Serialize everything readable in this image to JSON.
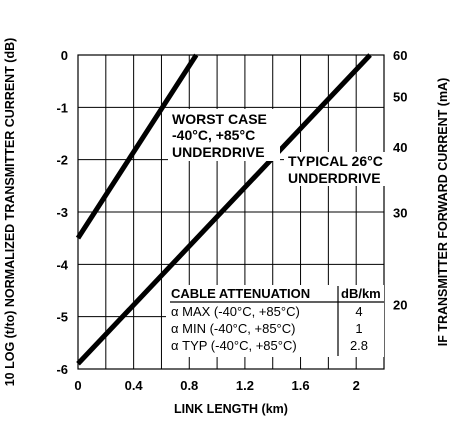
{
  "chart_data": {
    "type": "line",
    "xlabel": "LINK LENGTH (km)",
    "ylabel": "10 LOG (t/to) NORMALIZED TRANSMITTER CURRENT (dB)",
    "y2label": "IF TRANSMITTER FORWARD CURRENT (mA)",
    "xlim": [
      0,
      2.2
    ],
    "ylim": [
      -6,
      0
    ],
    "x_ticks": [
      0,
      0.4,
      0.8,
      1.2,
      1.6,
      2.0
    ],
    "x_tick_labels": [
      "0",
      "0.4",
      "0.8",
      "1.2",
      "1.6",
      "2"
    ],
    "y_ticks": [
      0,
      -1,
      -2,
      -3,
      -4,
      -5,
      -6
    ],
    "y_tick_labels": [
      "0",
      "-1",
      "-2",
      "-3",
      "-4",
      "-5",
      "-6"
    ],
    "y2_ticks": [
      60,
      50,
      40,
      30,
      20
    ],
    "grid": true,
    "series": [
      {
        "name": "WORST CASE -40°C, +85°C UNDERDRIVE",
        "x": [
          0,
          0.85
        ],
        "y": [
          -3.5,
          0
        ]
      },
      {
        "name": "TYPICAL 26°C UNDERDRIVE",
        "x": [
          0,
          2.1
        ],
        "y": [
          -5.9,
          0
        ]
      }
    ],
    "annotations": {
      "worst": [
        "WORST CASE",
        "-40°C, +85°C",
        "UNDERDRIVE"
      ],
      "typical": [
        "TYPICAL 26°C",
        "UNDERDRIVE"
      ]
    },
    "table": {
      "header": [
        "CABLE ATTENUATION",
        "dB/km"
      ],
      "rows": [
        [
          "α MAX (-40°C, +85°C)",
          "4"
        ],
        [
          "α MIN (-40°C, +85°C)",
          "1"
        ],
        [
          "α TYP (-40°C, +85°C)",
          "2.8"
        ]
      ]
    }
  }
}
